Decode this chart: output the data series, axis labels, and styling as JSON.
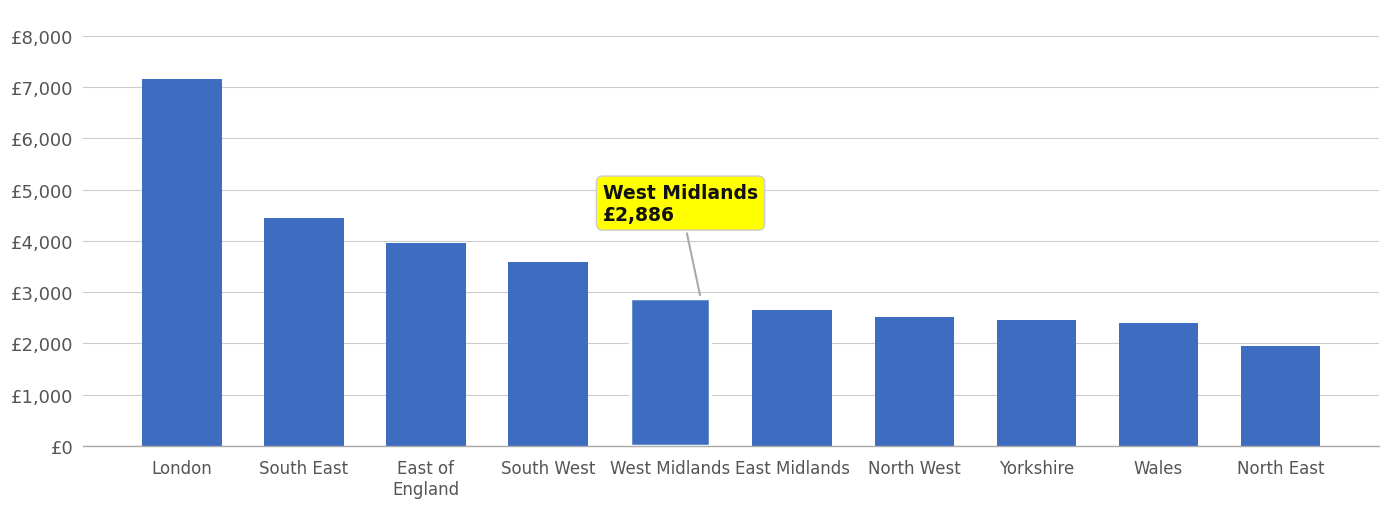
{
  "categories": [
    "London",
    "South East",
    "East of\nEngland",
    "South West",
    "West Midlands",
    "East Midlands",
    "North West",
    "Yorkshire",
    "Wales",
    "North East"
  ],
  "values": [
    7150,
    4450,
    3950,
    3580,
    2886,
    2660,
    2510,
    2450,
    2390,
    1940
  ],
  "bar_color": "#3d6cc0",
  "highlight_index": 4,
  "highlight_edge_color": "#ffffff",
  "highlight_label": "West Midlands\n£2,886",
  "annotation_bg_color": "#ffff00",
  "annotation_text_color": "#111111",
  "ylim": [
    0,
    8500
  ],
  "yticks": [
    0,
    1000,
    2000,
    3000,
    4000,
    5000,
    6000,
    7000,
    8000
  ],
  "ytick_labels": [
    "£0",
    "£1,000",
    "£2,000",
    "£3,000",
    "£4,000",
    "£5,000",
    "£6,000",
    "£7,000",
    "£8,000"
  ],
  "grid_color": "#cccccc",
  "background_color": "#ffffff",
  "tick_color": "#555555",
  "bar_width": 0.65
}
